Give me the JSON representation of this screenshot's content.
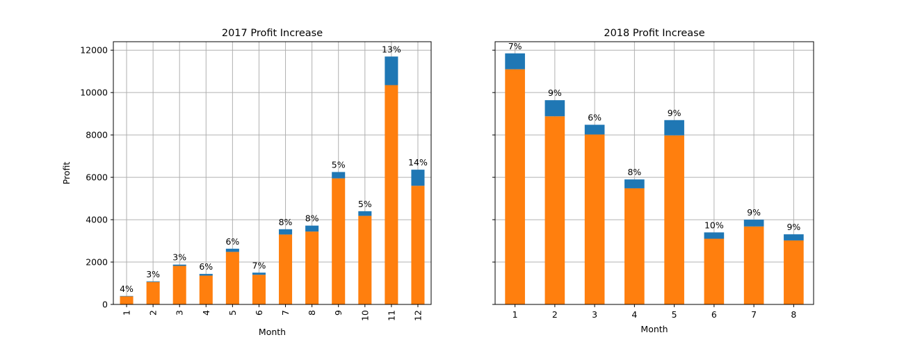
{
  "chart_data": [
    {
      "type": "bar",
      "stacked": true,
      "title": "2017 Profit Increase",
      "xlabel": "Month",
      "ylabel": "Profit",
      "ylim": [
        0,
        12400
      ],
      "yticks": [
        0,
        2000,
        4000,
        6000,
        8000,
        10000,
        12000
      ],
      "xtick_rotation": 90,
      "grid": true,
      "categories": [
        "1",
        "2",
        "3",
        "4",
        "5",
        "6",
        "7",
        "8",
        "9",
        "10",
        "11",
        "12"
      ],
      "series": [
        {
          "color": "#ff7f0e",
          "values": [
            380,
            1060,
            1820,
            1360,
            2480,
            1400,
            3300,
            3440,
            5950,
            4180,
            10350,
            5600
          ]
        },
        {
          "color": "#1f77b4",
          "values": [
            20,
            30,
            60,
            80,
            150,
            100,
            250,
            280,
            300,
            220,
            1350,
            760
          ]
        }
      ],
      "data_labels": [
        "4%",
        "3%",
        "3%",
        "6%",
        "6%",
        "7%",
        "8%",
        "8%",
        "5%",
        "5%",
        "13%",
        "14%"
      ]
    },
    {
      "type": "bar",
      "stacked": true,
      "title": "2018 Profit Increase",
      "xlabel": "Month",
      "ylabel": "",
      "ylim": [
        0,
        12400
      ],
      "yticks": [
        0,
        2000,
        4000,
        6000,
        8000,
        10000,
        12000
      ],
      "show_ytick_labels": false,
      "xtick_rotation": 0,
      "grid": true,
      "categories": [
        "1",
        "2",
        "3",
        "4",
        "5",
        "6",
        "7",
        "8"
      ],
      "series": [
        {
          "color": "#ff7f0e",
          "values": [
            11100,
            8880,
            8020,
            5480,
            7980,
            3100,
            3680,
            3020
          ]
        },
        {
          "color": "#1f77b4",
          "values": [
            750,
            760,
            460,
            420,
            720,
            300,
            320,
            290
          ]
        }
      ],
      "data_labels": [
        "7%",
        "9%",
        "6%",
        "8%",
        "9%",
        "10%",
        "9%",
        "9%"
      ]
    }
  ]
}
